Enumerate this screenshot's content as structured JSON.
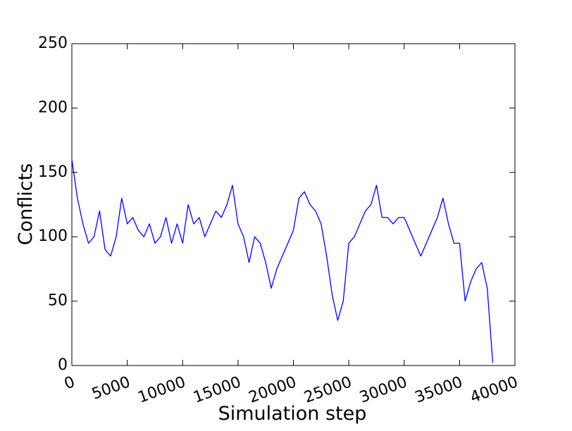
{
  "chart_data": {
    "type": "line",
    "x_label": "Simulation step",
    "y_label": "Conflicts",
    "x": [
      0,
      500,
      1000,
      1500,
      2000,
      2500,
      3000,
      3500,
      4000,
      4500,
      5000,
      5500,
      6000,
      6500,
      7000,
      7500,
      8000,
      8500,
      9000,
      9500,
      10000,
      10500,
      11000,
      11500,
      12000,
      12500,
      13000,
      13500,
      14000,
      14500,
      15000,
      15500,
      16000,
      16500,
      17000,
      17500,
      18000,
      18500,
      19000,
      19500,
      20000,
      20500,
      21000,
      21500,
      22000,
      22500,
      23000,
      23500,
      24000,
      24500,
      25000,
      25500,
      26000,
      26500,
      27000,
      27500,
      28000,
      28500,
      29000,
      29500,
      30000,
      30500,
      31000,
      31500,
      32000,
      32500,
      33000,
      33500,
      34000,
      34500,
      35000,
      35500,
      36000,
      36500,
      37000,
      37500,
      38000
    ],
    "values": [
      160,
      130,
      110,
      95,
      100,
      120,
      90,
      85,
      100,
      130,
      110,
      115,
      105,
      100,
      110,
      95,
      100,
      115,
      95,
      110,
      95,
      125,
      110,
      115,
      100,
      110,
      120,
      115,
      125,
      140,
      110,
      100,
      80,
      100,
      95,
      80,
      60,
      75,
      85,
      95,
      105,
      130,
      135,
      125,
      120,
      110,
      85,
      55,
      35,
      50,
      95,
      100,
      110,
      120,
      125,
      140,
      115,
      115,
      110,
      115,
      115,
      105,
      95,
      85,
      95,
      105,
      115,
      130,
      110,
      95,
      95,
      50,
      65,
      75,
      80,
      60,
      2
    ],
    "color": "#0000ff",
    "xlim": [
      0,
      40000
    ],
    "xticks": [
      0,
      5000,
      10000,
      15000,
      20000,
      25000,
      30000,
      35000,
      40000
    ],
    "ylim": [
      0,
      250
    ],
    "yticks": [
      0,
      50,
      100,
      150,
      200,
      250
    ],
    "grid": false
  }
}
